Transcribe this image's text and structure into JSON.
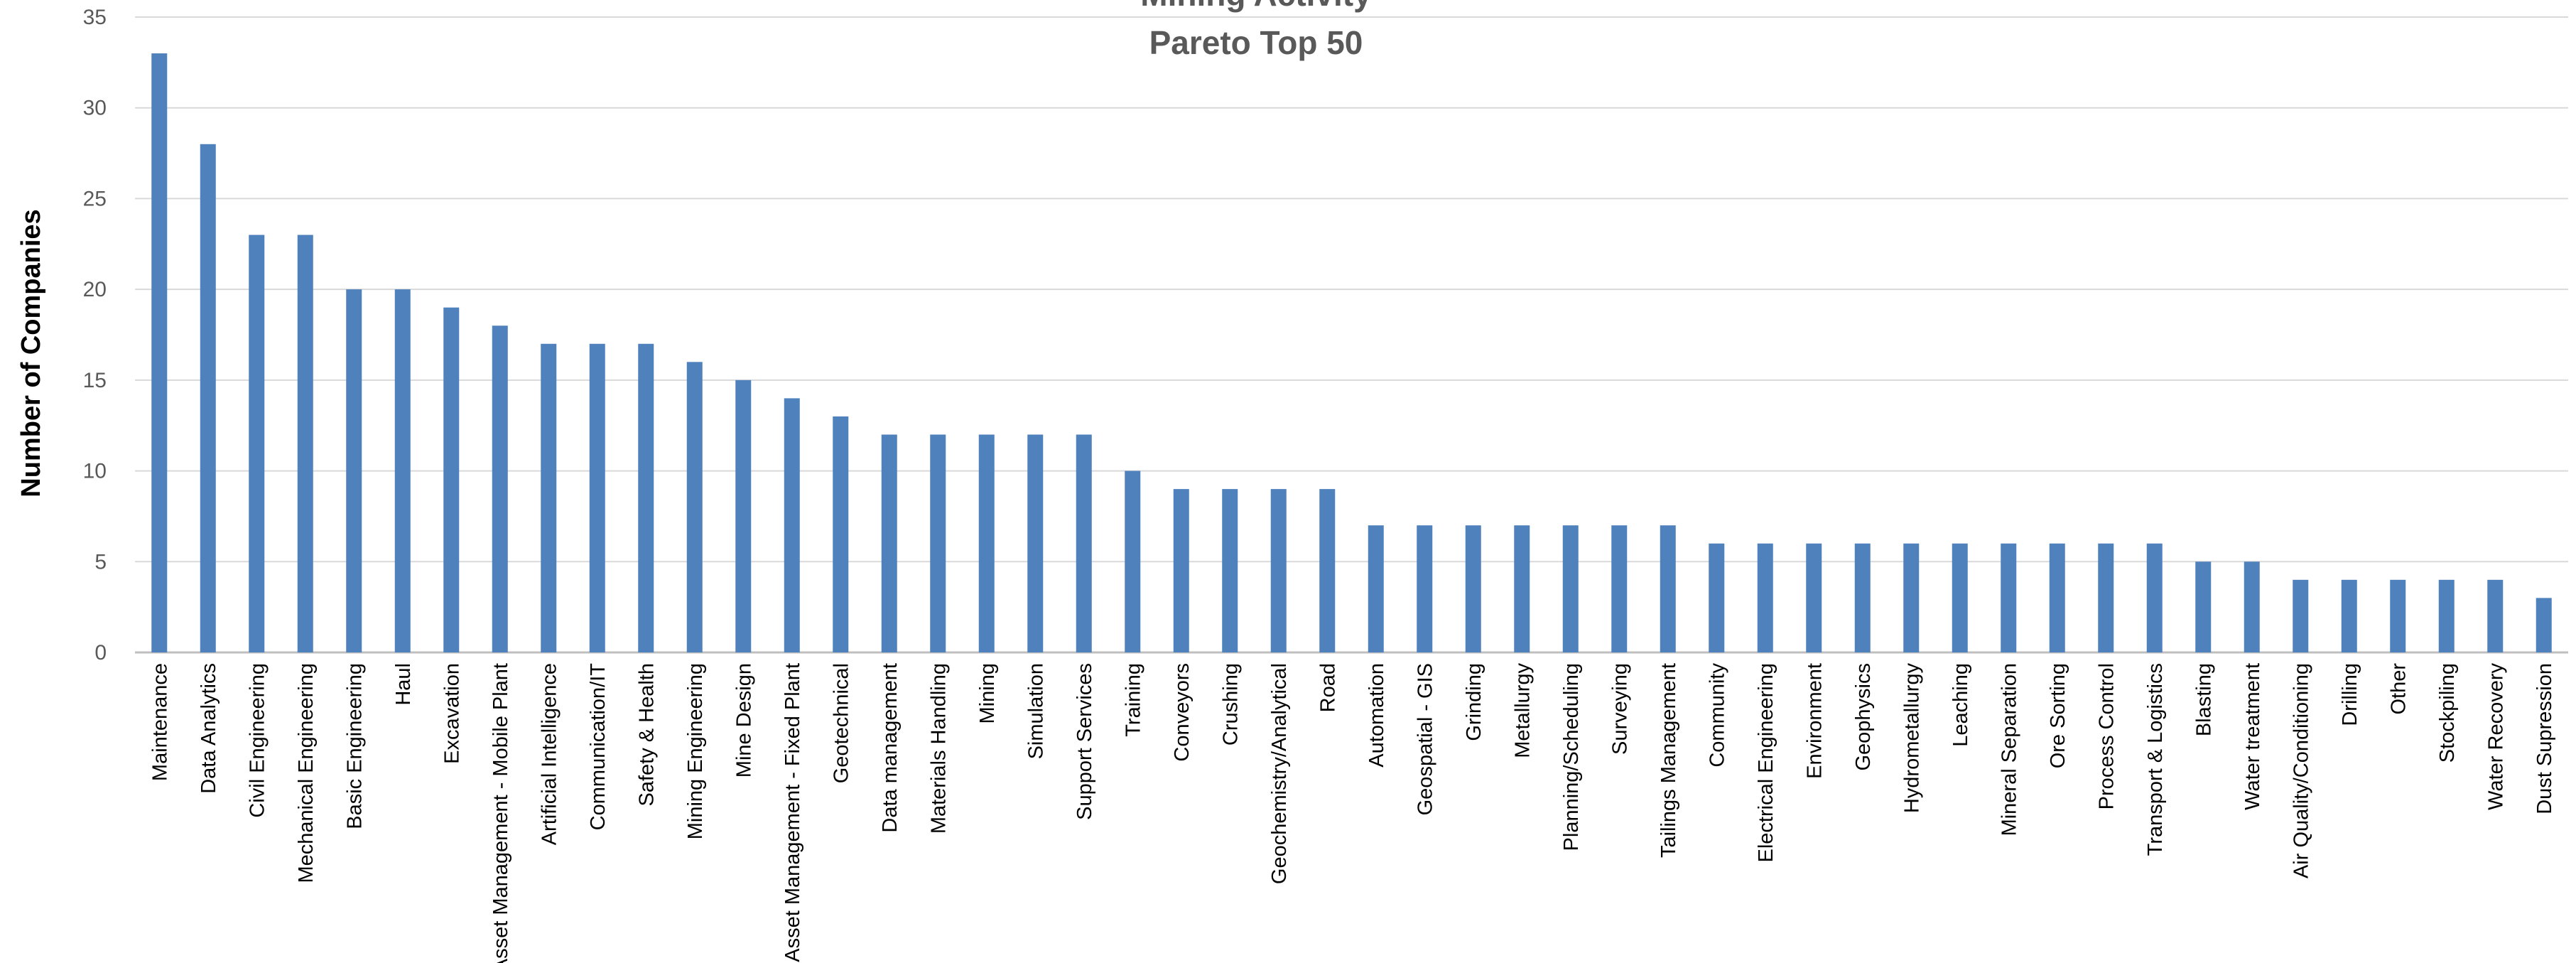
{
  "chart_data": {
    "type": "bar",
    "title": "Mining Activity",
    "subtitle": "Pareto Top 50",
    "xlabel": "",
    "ylabel": "Number of Companies",
    "ylim": [
      0,
      35
    ],
    "yticks": [
      0,
      5,
      10,
      15,
      20,
      25,
      30,
      35
    ],
    "grid": true,
    "legend": "none",
    "bar_color": "#4f81bd",
    "categories": [
      "Maintenance",
      "Data Analytics",
      "Civil Engineering",
      "Mechanical Engineering",
      "Basic Engineering",
      "Haul",
      "Excavation",
      "Asset Management - Mobile Plant",
      "Artificial Intelligence",
      "Communication/IT",
      "Safety & Health",
      "Mining Engineering",
      "Mine Design",
      "Asset Management - Fixed Plant",
      "Geotechnical",
      "Data management",
      "Materials Handling",
      "Mining",
      "Simulation",
      "Support Services",
      "Training",
      "Conveyors",
      "Crushing",
      "Geochemistry/Analytical",
      "Road",
      "Automation",
      "Geospatial - GIS",
      "Grinding",
      "Metallurgy",
      "Planning/Scheduling",
      "Surveying",
      "Tailings Management",
      "Community",
      "Electrical Engineering",
      "Environment",
      "Geophysics",
      "Hydrometallurgy",
      "Leaching",
      "Mineral Separation",
      "Ore Sorting",
      "Process Control",
      "Transport & Logistics",
      "Blasting",
      "Water treatment",
      "Air Quality/Conditioning",
      "Drilling",
      "Other",
      "Stockpiling",
      "Water Recovery",
      "Dust Supression"
    ],
    "values": [
      33,
      28,
      23,
      23,
      20,
      20,
      19,
      18,
      17,
      17,
      17,
      16,
      15,
      14,
      13,
      12,
      12,
      12,
      12,
      12,
      10,
      9,
      9,
      9,
      9,
      7,
      7,
      7,
      7,
      7,
      7,
      7,
      6,
      6,
      6,
      6,
      6,
      6,
      6,
      6,
      6,
      6,
      5,
      5,
      4,
      4,
      4,
      4,
      4,
      3
    ]
  }
}
